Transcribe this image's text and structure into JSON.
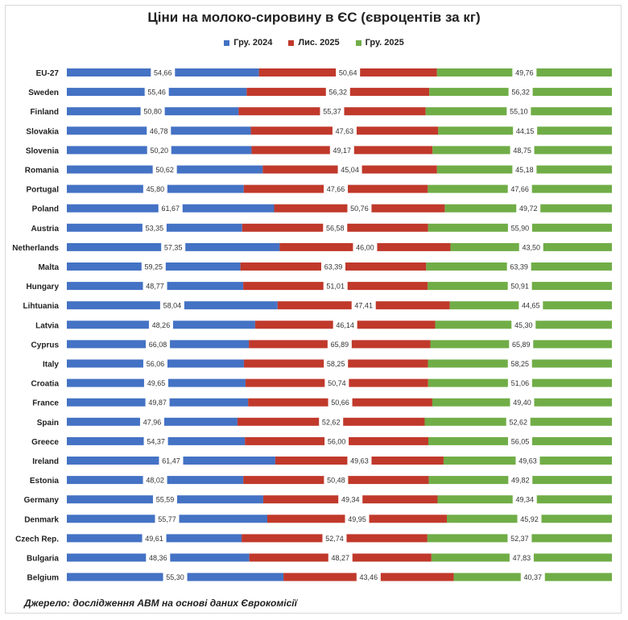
{
  "chart_data": {
    "type": "bar",
    "orientation": "horizontal",
    "stacking": "percent",
    "title": "Ціни на молоко-сировину в ЄС (євроцентів за кг)",
    "categories": [
      "EU-27",
      "Sweden",
      "Finland",
      "Slovakia",
      "Slovenia",
      "Romania",
      "Portugal",
      "Poland",
      "Austria",
      "Netherlands",
      "Malta",
      "Hungary",
      "Lihtuania",
      "Latvia",
      "Cyprus",
      "Italy",
      "Croatia",
      "France",
      "Spain",
      "Greece",
      "Ireland",
      "Estonia",
      "Germany",
      "Denmark",
      "Czech Rep.",
      "Bulgaria",
      "Belgium"
    ],
    "series": [
      {
        "name": "Гру. 2024",
        "color": "#4472c4",
        "values": [
          "54,66",
          "55,46",
          "50,80",
          "46,78",
          "50,20",
          "50,62",
          "45,80",
          "61,67",
          "53,35",
          "57,35",
          "59,25",
          "48,77",
          "58,04",
          "48,26",
          "66,08",
          "56,06",
          "49,65",
          "49,87",
          "47,96",
          "54,37",
          "61,47",
          "48,02",
          "55,59",
          "55,77",
          "49,61",
          "48,36",
          "55,30"
        ]
      },
      {
        "name": "Лис. 2025",
        "color": "#c0392b",
        "values": [
          "50,64",
          "56,32",
          "55,37",
          "47,63",
          "49,17",
          "45,04",
          "47,66",
          "50,76",
          "56,58",
          "46,00",
          "63,39",
          "51,01",
          "47,41",
          "46,14",
          "65,89",
          "58,25",
          "50,74",
          "50,66",
          "52,62",
          "56,00",
          "49,63",
          "50,48",
          "49,34",
          "49,95",
          "52,74",
          "48,27",
          "43,46"
        ]
      },
      {
        "name": "Гру. 2025",
        "color": "#70ad47",
        "values": [
          "49,76",
          "56,32",
          "55,10",
          "44,15",
          "48,75",
          "45,18",
          "47,66",
          "49,72",
          "55,90",
          "43,50",
          "63,39",
          "50,91",
          "44,65",
          "45,30",
          "65,89",
          "58,25",
          "51,06",
          "49,40",
          "52,62",
          "56,05",
          "49,63",
          "49,82",
          "49,34",
          "45,92",
          "52,37",
          "47,83",
          "40,37"
        ]
      }
    ],
    "grid": false,
    "legend": "top"
  },
  "source": "Джерело: дослідження АВМ на основі даних Єврокомісії"
}
